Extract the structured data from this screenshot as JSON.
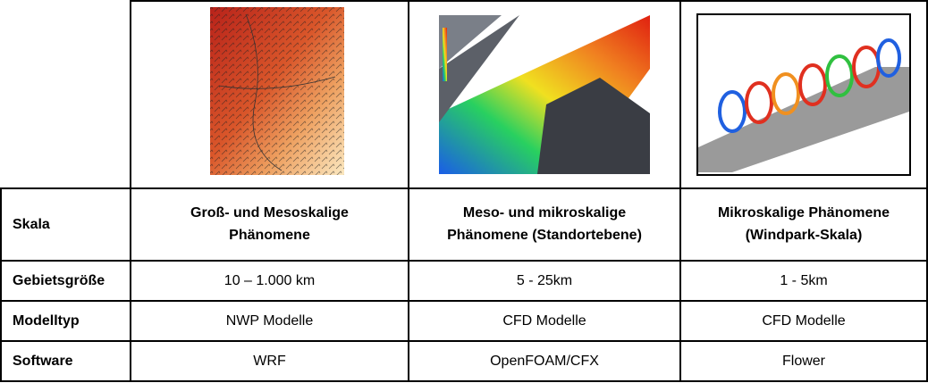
{
  "table": {
    "rows": [
      [
        "Skala",
        "Groß- und Mesoskalige Phänomene",
        "Meso- und mikroskalige Phänomene (Standortebene)",
        "Mikroskalige Phänomene (Windpark-Skala)"
      ],
      [
        "Gebietsgröße",
        "10 – 1.000 km",
        "5 - 25km",
        "1 - 5km"
      ],
      [
        "Modelltyp",
        "NWP Modelle",
        "CFD Modelle",
        "CFD Modelle"
      ],
      [
        "Software",
        "WRF",
        "OpenFOAM/CFX",
        "Flower"
      ]
    ]
  }
}
